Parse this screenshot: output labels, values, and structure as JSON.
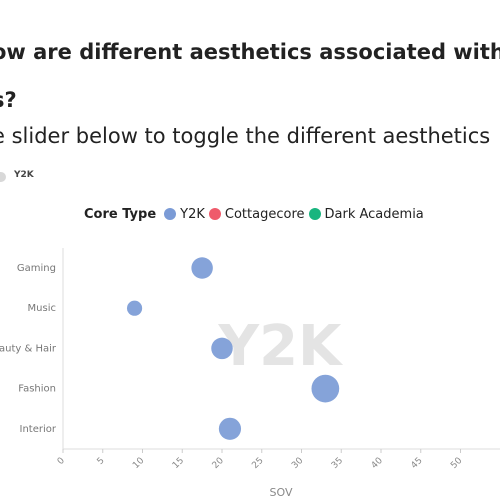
{
  "header": {
    "title_line1": "ow are different aesthetics associated with diff",
    "title_line2": "s?",
    "subtitle": "e slider below to toggle the different aesthetics"
  },
  "slider": {
    "label": "Y2K"
  },
  "colors": {
    "Y2K": "#7b9bd6",
    "Cottagecore": "#ef5b6b",
    "Dark Academia": "#19b57f",
    "watermark": "#e4e4e4"
  },
  "chart_data": {
    "type": "scatter",
    "title": "",
    "xlabel": "SOV",
    "ylabel": "",
    "xlim": [
      0,
      50
    ],
    "x_ticks": [
      0,
      5,
      10,
      15,
      20,
      25,
      30,
      35,
      40,
      45,
      50
    ],
    "categories": [
      "Gaming",
      "Music",
      "eauty & Hair",
      "Fashion",
      "Interior"
    ],
    "legend": {
      "title": "Core Type",
      "placement": "top",
      "entries": [
        "Y2K",
        "Cottagecore",
        "Dark Academia"
      ]
    },
    "watermark": "Y2K",
    "series": [
      {
        "name": "Y2K",
        "points": [
          {
            "category": "Gaming",
            "x": 17.5,
            "size": 3
          },
          {
            "category": "Music",
            "x": 9.0,
            "size": 1.5
          },
          {
            "category": "eauty & Hair",
            "x": 20.0,
            "size": 3
          },
          {
            "category": "Fashion",
            "x": 33.0,
            "size": 5
          },
          {
            "category": "Interior",
            "x": 21.0,
            "size": 3.2
          }
        ]
      }
    ]
  }
}
